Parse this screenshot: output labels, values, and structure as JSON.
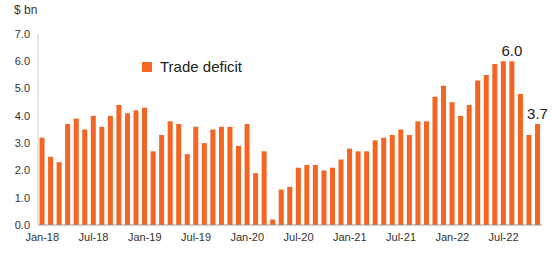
{
  "chart_data": {
    "type": "bar",
    "y_label": "$ bn",
    "categories": [
      "Jan-18",
      null,
      null,
      null,
      null,
      null,
      "Jul-18",
      null,
      null,
      null,
      null,
      null,
      "Jan-19",
      null,
      null,
      null,
      null,
      null,
      "Jul-19",
      null,
      null,
      null,
      null,
      null,
      "Jan-20",
      null,
      null,
      null,
      null,
      null,
      "Jul-20",
      null,
      null,
      null,
      null,
      null,
      "Jan-21",
      null,
      null,
      null,
      null,
      null,
      "Jul-21",
      null,
      null,
      null,
      null,
      null,
      "Jan-22",
      null,
      null,
      null,
      null,
      null,
      "Jul-22",
      null,
      null,
      null,
      null
    ],
    "series": [
      {
        "name": "Trade deficit",
        "color": "#f26522",
        "values": [
          3.2,
          2.5,
          2.3,
          3.7,
          3.9,
          3.5,
          4.0,
          3.6,
          4.0,
          4.4,
          4.1,
          4.2,
          4.3,
          2.7,
          3.3,
          3.8,
          3.7,
          2.6,
          3.6,
          3.0,
          3.5,
          3.6,
          3.6,
          2.9,
          3.7,
          1.9,
          2.7,
          0.2,
          1.3,
          1.4,
          2.1,
          2.2,
          2.2,
          2.0,
          2.1,
          2.4,
          2.8,
          2.7,
          2.7,
          3.1,
          3.2,
          3.3,
          3.5,
          3.3,
          3.8,
          3.8,
          4.7,
          5.1,
          4.5,
          4.0,
          4.4,
          5.3,
          5.5,
          5.9,
          6.0,
          6.0,
          4.8,
          3.3,
          3.7
        ],
        "value_labels": [
          null,
          null,
          null,
          null,
          null,
          null,
          null,
          null,
          null,
          null,
          null,
          null,
          null,
          null,
          null,
          null,
          null,
          null,
          null,
          null,
          null,
          null,
          null,
          null,
          null,
          null,
          null,
          null,
          null,
          null,
          null,
          null,
          null,
          null,
          null,
          null,
          null,
          null,
          null,
          null,
          null,
          null,
          null,
          null,
          null,
          null,
          null,
          null,
          null,
          null,
          null,
          null,
          null,
          null,
          null,
          "6.0",
          null,
          null,
          "3.7"
        ]
      }
    ],
    "ylim": [
      0,
      7
    ],
    "yticks": [
      {
        "value": 0,
        "label": "0.0"
      },
      {
        "value": 1,
        "label": "1.0"
      },
      {
        "value": 2,
        "label": "2.0"
      },
      {
        "value": 3,
        "label": "3.0"
      },
      {
        "value": 4,
        "label": "4.0"
      },
      {
        "value": 5,
        "label": "5.0"
      },
      {
        "value": 6,
        "label": "6.0"
      },
      {
        "value": 7,
        "label": "7.0"
      }
    ],
    "grid": false,
    "legend": "upper left"
  }
}
